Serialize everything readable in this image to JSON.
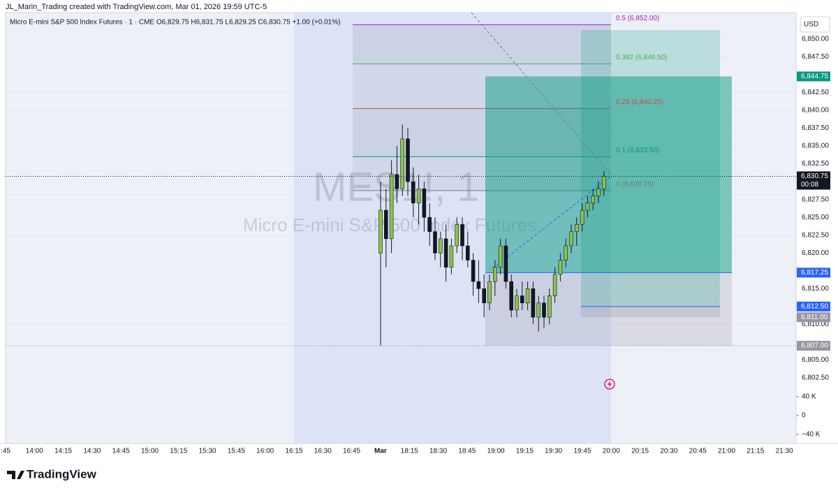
{
  "chart_data": {
    "type": "candlestick",
    "header": "JL_Marin_Trading created with TradingView.com, Mar 01, 2026 19:59 UTC-5",
    "legend": "Micro E-mini S&P 500 Index Futures · 1 · CME  O6,829.75 H6,831.75 L6,829.25 C6,830.75 +1.00 (+0.01%)",
    "watermark_symbol": "MES1!, 1",
    "watermark_name": "Micro E-mini S&P 500 Index Futures",
    "currency": "USD",
    "logo": "TradingView",
    "ylim": [
      6793.3,
      6853.7
    ],
    "yticks": [
      {
        "value": 6850,
        "label": "6,850.00"
      },
      {
        "value": 6847.5,
        "label": "6,847.50"
      },
      {
        "value": 6842.5,
        "label": "6,842.50"
      },
      {
        "value": 6840,
        "label": "6,840.00"
      },
      {
        "value": 6837.5,
        "label": "6,837.50"
      },
      {
        "value": 6835,
        "label": "6,835.00"
      },
      {
        "value": 6832.5,
        "label": "6,832.50"
      },
      {
        "value": 6827.5,
        "label": "6,827.50"
      },
      {
        "value": 6825,
        "label": "6,825.00"
      },
      {
        "value": 6822.5,
        "label": "6,822.50"
      },
      {
        "value": 6820,
        "label": "6,820.00"
      },
      {
        "value": 6815,
        "label": "6,815.00"
      },
      {
        "value": 6810,
        "label": "6,810.00"
      },
      {
        "value": 6805,
        "label": "6,805.00"
      },
      {
        "value": 6802.5,
        "label": "6,802.50"
      }
    ],
    "volume_lim": [
      -40000,
      40000
    ],
    "volume_ticks": [
      {
        "value": 40000,
        "label": "40 K"
      },
      0,
      {
        "value": -40000,
        "label": "−40 K"
      }
    ],
    "price_badges": [
      {
        "value": 6844.75,
        "label": "6,844.75",
        "color": "#089981"
      },
      {
        "value": 6830.75,
        "label": "6,830.75",
        "color": "#131722",
        "countdown": "00:08"
      },
      {
        "value": 6817.25,
        "label": "6,817.25",
        "color": "#2962ff"
      },
      {
        "value": 6812.5,
        "label": "6,812.50",
        "color": "#2962ff"
      },
      {
        "value": 6811,
        "label": "6,811.00",
        "color": "#9598a1"
      },
      {
        "value": 6807,
        "label": "6,807.00",
        "color": "#9598a1"
      }
    ],
    "fib_levels": [
      {
        "value": 6852,
        "label": "0.5 (6,852.00)",
        "color": "#9c27b0"
      },
      {
        "value": 6846.5,
        "label": "0.382 (6,846.50)",
        "color": "#4caf50"
      },
      {
        "value": 6840.25,
        "label": "0.25 (6,840.25)",
        "color": "#c0504d"
      },
      {
        "value": 6833.5,
        "label": "0.1 (6,833.50)",
        "color": "#089981"
      },
      {
        "value": 6828.75,
        "label": "0 (6,828.75)",
        "color": "#787b86"
      }
    ],
    "positions": [
      {
        "target": 6844.75,
        "entry": 6817.25,
        "stop": 6807
      },
      {
        "target": 6851.25,
        "entry": 6812.5,
        "stop": 6811
      }
    ],
    "time_axis": [
      ":45",
      "14:00",
      "14:15",
      "14:30",
      "14:45",
      "15:00",
      "15:15",
      "15:30",
      "15:45",
      "16:00",
      "16:15",
      "16:30",
      "16:45",
      "Mar",
      "18:15",
      "18:30",
      "18:45",
      "19:00",
      "19:15",
      "19:30",
      "19:45",
      "20:00",
      "20:15",
      "20:30",
      "20:45",
      "21:00",
      "21:15",
      "21:30"
    ],
    "up_color": "#8bc34a",
    "down_color": "#131722",
    "candles": [
      [
        6820,
        6830,
        6807,
        6826
      ],
      [
        6826,
        6829,
        6818,
        6822
      ],
      [
        6822,
        6833,
        6820,
        6831
      ],
      [
        6831,
        6835,
        6827,
        6829
      ],
      [
        6829,
        6838,
        6828,
        6836
      ],
      [
        6836,
        6837.5,
        6828,
        6830
      ],
      [
        6830,
        6832,
        6825,
        6827
      ],
      [
        6827,
        6831,
        6824,
        6829
      ],
      [
        6829,
        6830,
        6823,
        6825
      ],
      [
        6825,
        6827,
        6821,
        6823
      ],
      [
        6823,
        6825,
        6819,
        6820
      ],
      [
        6820,
        6823,
        6818,
        6822
      ],
      [
        6822,
        6824,
        6816,
        6818
      ],
      [
        6818,
        6822,
        6817,
        6821
      ],
      [
        6821,
        6825,
        6820,
        6824
      ],
      [
        6824,
        6825,
        6819,
        6821
      ],
      [
        6821,
        6823,
        6818,
        6819
      ],
      [
        6819,
        6820,
        6814,
        6816
      ],
      [
        6816,
        6819,
        6813,
        6815
      ],
      [
        6815,
        6817,
        6811,
        6813
      ],
      [
        6813,
        6817,
        6812,
        6816
      ],
      [
        6816,
        6819,
        6814,
        6818
      ],
      [
        6818,
        6822,
        6817,
        6821
      ],
      [
        6821,
        6822,
        6815,
        6816
      ],
      [
        6816,
        6817,
        6811,
        6812
      ],
      [
        6812,
        6815,
        6811,
        6814
      ],
      [
        6814,
        6816,
        6812,
        6813
      ],
      [
        6813,
        6816,
        6812,
        6815
      ],
      [
        6815,
        6816,
        6810,
        6811
      ],
      [
        6811,
        6814,
        6809,
        6813
      ],
      [
        6813,
        6814,
        6809.5,
        6811
      ],
      [
        6811,
        6815,
        6810,
        6814
      ],
      [
        6814,
        6818,
        6813,
        6817
      ],
      [
        6817,
        6820,
        6816,
        6819
      ],
      [
        6819,
        6822,
        6818,
        6821
      ],
      [
        6821,
        6824,
        6820,
        6823
      ],
      [
        6823,
        6825,
        6821,
        6824
      ],
      [
        6824,
        6827,
        6823,
        6826
      ],
      [
        6826,
        6828,
        6825,
        6827
      ],
      [
        6827,
        6829,
        6826,
        6828
      ],
      [
        6828,
        6830,
        6827,
        6829
      ],
      [
        6829,
        6831.5,
        6828,
        6830.75
      ]
    ]
  }
}
